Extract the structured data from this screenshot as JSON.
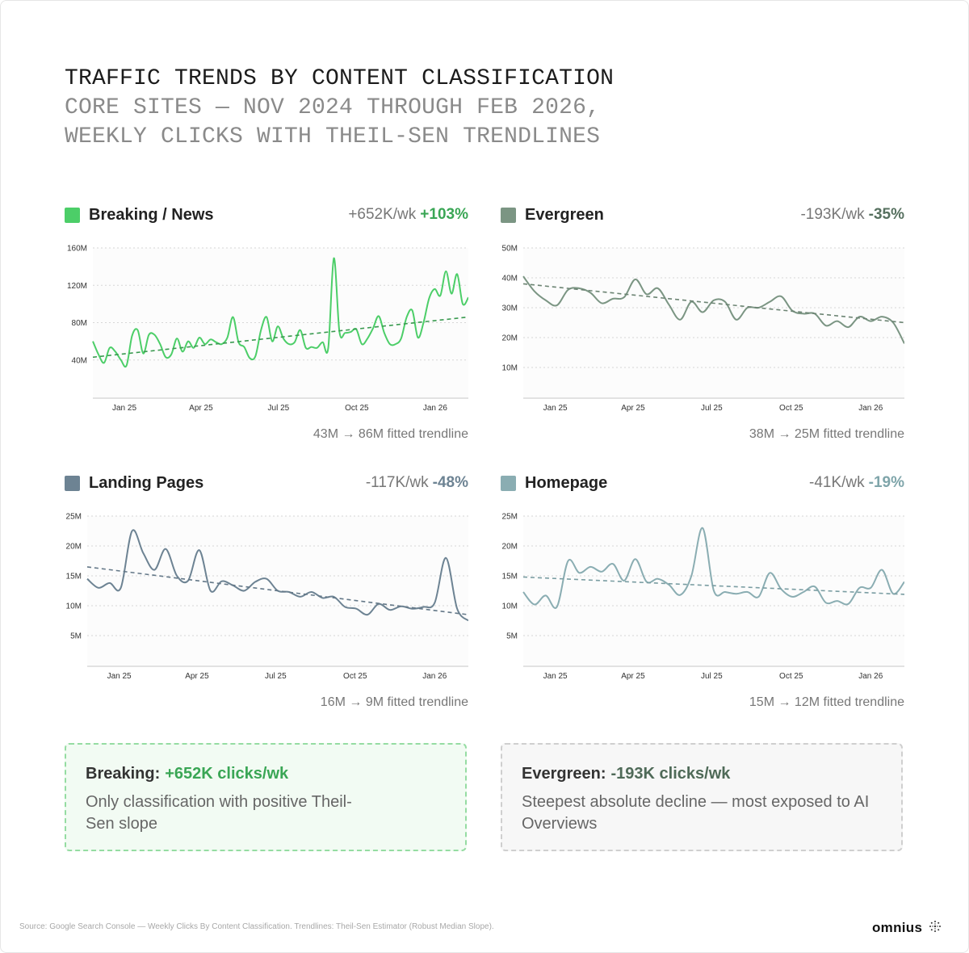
{
  "header": {
    "title": "TRAFFIC TRENDS BY CONTENT CLASSIFICATION",
    "subtitle_line1": "CORE SITES — NOV 2024 THROUGH FEB 2026,",
    "subtitle_line2": "WEEKLY CLICKS WITH THEIL-SEN TRENDLINES"
  },
  "chart_data": [
    {
      "type": "line",
      "title": "Breaking / News",
      "slope_label": "+652K/wk",
      "change_label": "+103%",
      "footnote": "43M → 86M fitted trendline",
      "color": "#4cce68",
      "trend_color": "#3a9a50",
      "stat_color": "#3aa655",
      "xlim": [
        "2024-11-25",
        "2026-02-09"
      ],
      "xticks": [
        {
          "date": "2025-01-01",
          "label": "Jan 25"
        },
        {
          "date": "2025-04-01",
          "label": "Apr 25"
        },
        {
          "date": "2025-07-01",
          "label": "Jul 25"
        },
        {
          "date": "2025-10-01",
          "label": "Oct 25"
        },
        {
          "date": "2026-01-01",
          "label": "Jan 26"
        }
      ],
      "ylim": [
        0,
        160
      ],
      "yticks": [
        {
          "v": 40,
          "label": "40M"
        },
        {
          "v": 80,
          "label": "80M"
        },
        {
          "v": 120,
          "label": "120M"
        },
        {
          "v": 160,
          "label": "160M"
        }
      ],
      "grid": true,
      "values": [
        60,
        46,
        37,
        53,
        49,
        40,
        34,
        66,
        72,
        47,
        67,
        67,
        57,
        43,
        46,
        63,
        49,
        60,
        53,
        64,
        57,
        62,
        59,
        57,
        64,
        86,
        59,
        54,
        42,
        44,
        72,
        86,
        60,
        76,
        63,
        57,
        59,
        72,
        53,
        54,
        53,
        59,
        53,
        149,
        70,
        69,
        70,
        73,
        57,
        63,
        74,
        87,
        69,
        57,
        57,
        63,
        86,
        93,
        64,
        80,
        106,
        116,
        109,
        135,
        111,
        132,
        100,
        107
      ],
      "trendline": [
        43,
        86
      ]
    },
    {
      "type": "line",
      "title": "Evergreen",
      "slope_label": "-193K/wk",
      "change_label": "-35%",
      "footnote": "38M → 25M fitted trendline",
      "color": "#7b9583",
      "trend_color": "#6c8473",
      "stat_color": "#56705f",
      "xlim": [
        "2024-11-25",
        "2026-02-09"
      ],
      "xticks": [
        {
          "date": "2025-01-01",
          "label": "Jan 25"
        },
        {
          "date": "2025-04-01",
          "label": "Apr 25"
        },
        {
          "date": "2025-07-01",
          "label": "Jul 25"
        },
        {
          "date": "2025-10-01",
          "label": "Oct 25"
        },
        {
          "date": "2026-01-01",
          "label": "Jan 26"
        }
      ],
      "ylim": [
        0,
        50
      ],
      "yticks": [
        {
          "v": 10,
          "label": "10M"
        },
        {
          "v": 20,
          "label": "20M"
        },
        {
          "v": 30,
          "label": "30M"
        },
        {
          "v": 40,
          "label": "40M"
        },
        {
          "v": 50,
          "label": "50M"
        }
      ],
      "grid": true,
      "values": [
        40.5,
        35.5,
        32.5,
        30.8,
        36,
        36.5,
        35,
        31.5,
        33,
        33.5,
        39.5,
        34.5,
        36.5,
        31,
        26,
        32,
        28.5,
        32.5,
        32,
        26,
        30,
        30,
        32,
        33.8,
        29,
        28,
        28,
        24,
        25.5,
        23.5,
        27,
        25.5,
        27,
        25,
        18
      ],
      "trendline": [
        38,
        25
      ]
    },
    {
      "type": "line",
      "title": "Landing Pages",
      "slope_label": "-117K/wk",
      "change_label": "-48%",
      "footnote": "16M → 9M fitted trendline",
      "color": "#6d8393",
      "trend_color": "#647888",
      "stat_color": "#6d8393",
      "xlim": [
        "2024-11-25",
        "2026-02-09"
      ],
      "xticks": [
        {
          "date": "2025-01-01",
          "label": "Jan 25"
        },
        {
          "date": "2025-04-01",
          "label": "Apr 25"
        },
        {
          "date": "2025-07-01",
          "label": "Jul 25"
        },
        {
          "date": "2025-10-01",
          "label": "Oct 25"
        },
        {
          "date": "2026-01-01",
          "label": "Jan 26"
        }
      ],
      "ylim": [
        0,
        25
      ],
      "yticks": [
        {
          "v": 5,
          "label": "5M"
        },
        {
          "v": 10,
          "label": "10M"
        },
        {
          "v": 15,
          "label": "15M"
        },
        {
          "v": 20,
          "label": "20M"
        },
        {
          "v": 25,
          "label": "25M"
        }
      ],
      "grid": true,
      "values": [
        14.5,
        13,
        13.8,
        13,
        22.5,
        18.8,
        16,
        19.5,
        15,
        14.2,
        19.3,
        12.5,
        14.1,
        13.4,
        12.5,
        14,
        14.5,
        12.5,
        12.3,
        11.5,
        12.3,
        11.3,
        11.5,
        9.8,
        9.5,
        8.5,
        10.3,
        9.3,
        9.9,
        9.5,
        9.8,
        10.5,
        18,
        9.5,
        7.5
      ],
      "trendline": [
        16.5,
        8.5
      ]
    },
    {
      "type": "line",
      "title": "Homepage",
      "slope_label": "-41K/wk",
      "change_label": "-19%",
      "footnote": "15M → 12M fitted trendline",
      "color": "#8aadb2",
      "trend_color": "#7a9da2",
      "stat_color": "#7fa5aa",
      "xlim": [
        "2024-11-25",
        "2026-02-09"
      ],
      "xticks": [
        {
          "date": "2025-01-01",
          "label": "Jan 25"
        },
        {
          "date": "2025-04-01",
          "label": "Apr 25"
        },
        {
          "date": "2025-07-01",
          "label": "Jul 25"
        },
        {
          "date": "2025-10-01",
          "label": "Oct 25"
        },
        {
          "date": "2026-01-01",
          "label": "Jan 26"
        }
      ],
      "ylim": [
        0,
        25
      ],
      "yticks": [
        {
          "v": 5,
          "label": "5M"
        },
        {
          "v": 10,
          "label": "10M"
        },
        {
          "v": 15,
          "label": "15M"
        },
        {
          "v": 20,
          "label": "20M"
        },
        {
          "v": 25,
          "label": "25M"
        }
      ],
      "grid": true,
      "values": [
        12.3,
        10.2,
        11.7,
        9.8,
        17.5,
        15.5,
        16.5,
        15.7,
        17,
        14.2,
        17.8,
        14,
        14.5,
        13.5,
        11.8,
        15,
        23,
        12.5,
        12.3,
        12,
        12.3,
        11.5,
        15.5,
        12.8,
        11.5,
        12.3,
        13.2,
        10.5,
        10.8,
        10.3,
        13,
        13,
        16,
        12,
        14
      ],
      "trendline": [
        14.8,
        11.9
      ]
    }
  ],
  "callouts": [
    {
      "label": "Breaking:",
      "value": "+652K clicks/wk",
      "value_color": "#3aa655",
      "body": "Only classification with positive Theil-Sen slope"
    },
    {
      "label": "Evergreen:",
      "value": "-193K clicks/wk",
      "value_color": "#4f6a58",
      "body": "Steepest absolute decline — most exposed to AI Overviews"
    }
  ],
  "footer": {
    "source": "Source: Google Search Console — Weekly Clicks By Content Classification. Trendlines: Theil-Sen Estimator (Robust Median Slope).",
    "brand": "omnius"
  }
}
